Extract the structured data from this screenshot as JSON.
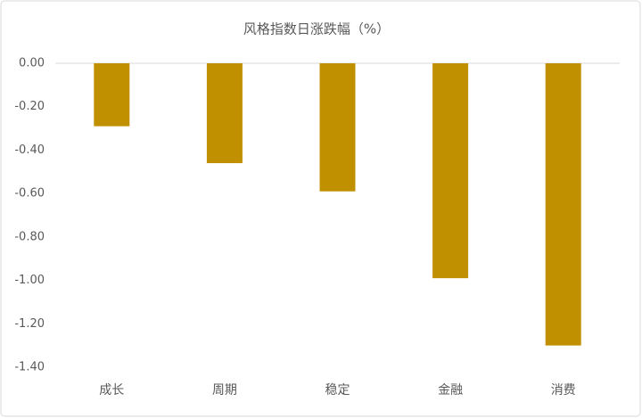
{
  "chart_data": {
    "type": "bar",
    "title": "风格指数日涨跌幅（%）",
    "categories": [
      "成长",
      "周期",
      "稳定",
      "金融",
      "消费"
    ],
    "values": [
      -0.29,
      -0.46,
      -0.59,
      -0.99,
      -1.3
    ],
    "color": "#c09000",
    "ylim": [
      -1.4,
      0
    ],
    "yticks": [
      {
        "value": 0,
        "label": "0.00"
      },
      {
        "value": -0.2,
        "label": "-0.20"
      },
      {
        "value": -0.4,
        "label": "-0.40"
      },
      {
        "value": -0.6,
        "label": "-0.60"
      },
      {
        "value": -0.8,
        "label": "-0.80"
      },
      {
        "value": -1.0,
        "label": "-1.00"
      },
      {
        "value": -1.2,
        "label": "-1.20"
      },
      {
        "value": -1.4,
        "label": "-1.40"
      }
    ],
    "grid": false
  }
}
